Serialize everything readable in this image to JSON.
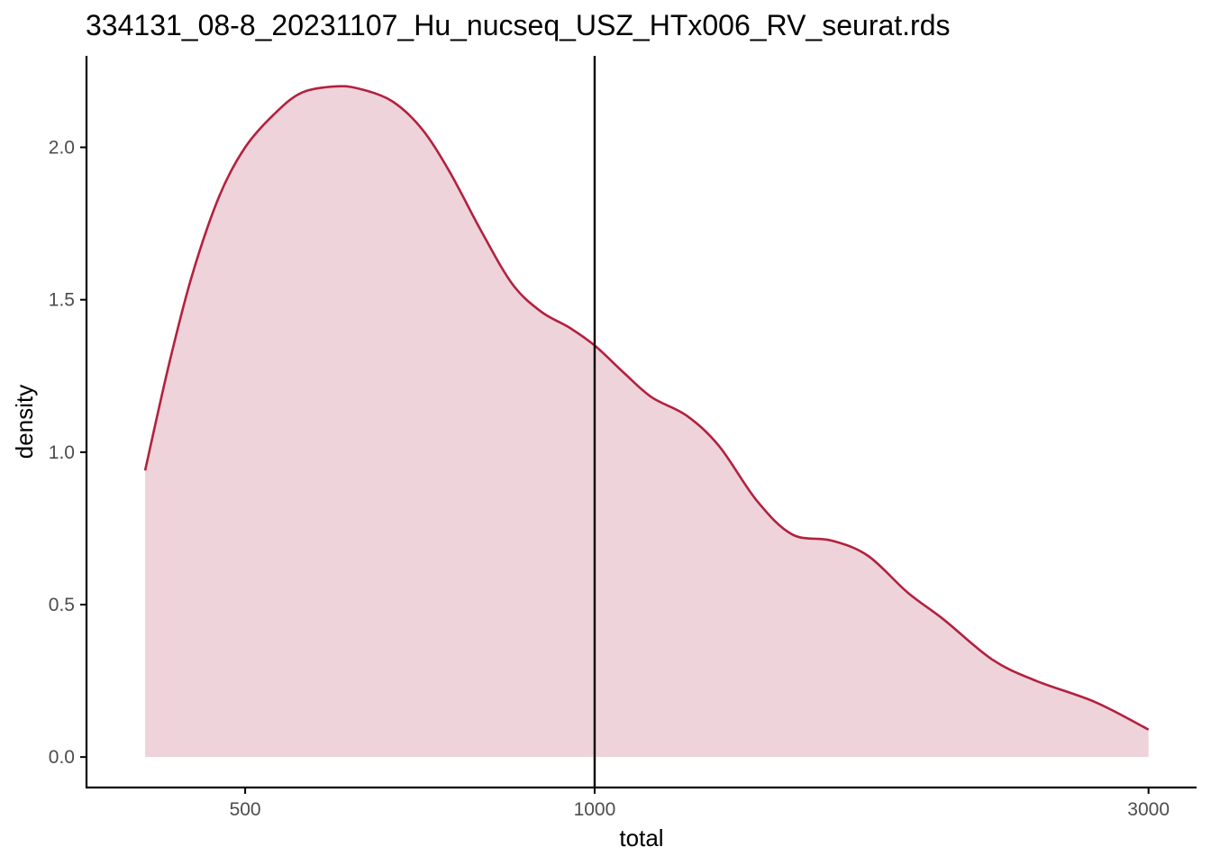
{
  "chart_data": {
    "type": "area",
    "title": "334131_08-8_20231107_Hu_nucseq_USZ_HTx006_RV_seurat.rds",
    "xlabel": "total",
    "ylabel": "density",
    "x_scale": "log10",
    "xlim": [
      365,
      3300
    ],
    "ylim": [
      -0.1,
      2.3
    ],
    "x_ticks": [
      500,
      1000,
      3000
    ],
    "x_tick_labels": [
      "500",
      "1000",
      "3000"
    ],
    "y_ticks": [
      0,
      0.5,
      1,
      1.5,
      2
    ],
    "y_tick_labels": [
      "0.0",
      "0.5",
      "1.0",
      "1.5",
      "2.0"
    ],
    "grid": false,
    "legend": "none",
    "vline": 1000,
    "series": [
      {
        "x": [
          410,
          430,
          450,
          475,
          500,
          530,
          560,
          600,
          630,
          670,
          710,
          750,
          800,
          850,
          900,
          950,
          1000,
          1060,
          1120,
          1200,
          1280,
          1380,
          1480,
          1600,
          1720,
          1860,
          2000,
          2200,
          2400,
          2700,
          3000
        ],
        "y": [
          0.94,
          1.29,
          1.58,
          1.84,
          2.0,
          2.11,
          2.18,
          2.2,
          2.19,
          2.15,
          2.06,
          1.92,
          1.72,
          1.55,
          1.46,
          1.41,
          1.35,
          1.26,
          1.18,
          1.12,
          1.02,
          0.84,
          0.73,
          0.71,
          0.66,
          0.54,
          0.45,
          0.32,
          0.25,
          0.18,
          0.09
        ]
      }
    ],
    "colors": {
      "line": "#B2213F",
      "fill": "#EFD3DA",
      "vline": "#000000",
      "axis": "#000000",
      "tick_text": "#4d4d4d"
    }
  }
}
